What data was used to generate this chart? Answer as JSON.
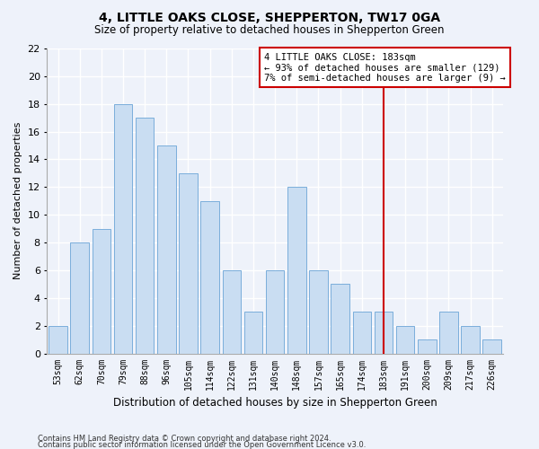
{
  "title": "4, LITTLE OAKS CLOSE, SHEPPERTON, TW17 0GA",
  "subtitle": "Size of property relative to detached houses in Shepperton Green",
  "xlabel": "Distribution of detached houses by size in Shepperton Green",
  "ylabel": "Number of detached properties",
  "footer_line1": "Contains HM Land Registry data © Crown copyright and database right 2024.",
  "footer_line2": "Contains public sector information licensed under the Open Government Licence v3.0.",
  "categories": [
    "53sqm",
    "62sqm",
    "70sqm",
    "79sqm",
    "88sqm",
    "96sqm",
    "105sqm",
    "114sqm",
    "122sqm",
    "131sqm",
    "140sqm",
    "148sqm",
    "157sqm",
    "165sqm",
    "174sqm",
    "183sqm",
    "191sqm",
    "200sqm",
    "209sqm",
    "217sqm",
    "226sqm"
  ],
  "values": [
    2,
    8,
    9,
    18,
    17,
    15,
    13,
    11,
    6,
    3,
    6,
    12,
    6,
    5,
    3,
    3,
    2,
    1,
    3,
    2,
    1
  ],
  "bar_color": "#c9ddf2",
  "bar_edge_color": "#7aaedb",
  "annotation_text": "4 LITTLE OAKS CLOSE: 183sqm\n← 93% of detached houses are smaller (129)\n7% of semi-detached houses are larger (9) →",
  "red_line_x": 15,
  "ylim": [
    0,
    22
  ],
  "yticks": [
    0,
    2,
    4,
    6,
    8,
    10,
    12,
    14,
    16,
    18,
    20,
    22
  ],
  "background_color": "#eef2fa",
  "grid_color": "#ffffff",
  "annotation_box_facecolor": "#ffffff",
  "annotation_border_color": "#cc0000",
  "red_line_color": "#cc0000",
  "title_fontsize": 10,
  "subtitle_fontsize": 8.5,
  "ylabel_fontsize": 8,
  "xlabel_fontsize": 8.5,
  "tick_fontsize": 8,
  "xtick_fontsize": 7,
  "footer_fontsize": 6,
  "ann_fontsize": 7.5
}
